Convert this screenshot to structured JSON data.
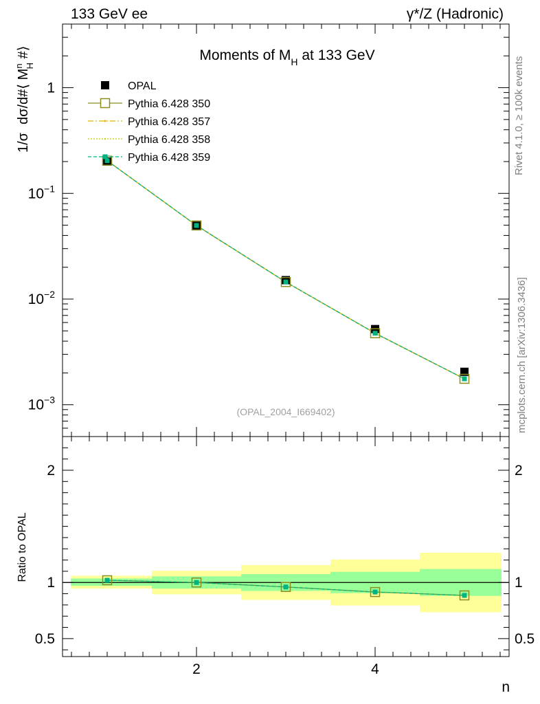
{
  "header": {
    "left": "133 GeV ee",
    "right": "γ*/Z (Hadronic)"
  },
  "side_text": {
    "top": "Rivet 4.1.0, ≥ 100k events",
    "bottom": "mcplots.cern.ch [arXiv:1306.3436]"
  },
  "colors": {
    "opal": "#000000",
    "p350": "#8c8c1e",
    "p357": "#e6b400",
    "p358": "#c8c800",
    "p359": "#00b482",
    "band_inner": "#99ff99",
    "band_outer": "#ffff99"
  },
  "chart_data": [
    {
      "type": "scatter",
      "title": "Moments of M",
      "title_sub": "H",
      "title_tail": " at 133 GeV",
      "reference": "(OPAL_2004_I669402)",
      "ylabel_prefix": "1/σ",
      "ylabel_main": "dσ/d#⟨ M",
      "ylabel_sup": "n",
      "ylabel_sub": "H",
      "ylabel_tail": " #⟩",
      "yscale": "log",
      "ylim": [
        0.0005,
        4
      ],
      "xlim": [
        0.5,
        5.5
      ],
      "x": [
        1,
        2,
        3,
        4,
        5
      ],
      "yticks": [
        {
          "value": 0.001,
          "base": "10",
          "exp": "−3"
        },
        {
          "value": 0.01,
          "base": "10",
          "exp": "−2"
        },
        {
          "value": 0.1,
          "base": "10",
          "exp": "−1"
        },
        {
          "value": 1,
          "label": "1"
        }
      ],
      "legend_position": "top-left",
      "series": [
        {
          "name": "OPAL",
          "values": [
            0.2,
            0.0495,
            0.0151,
            0.0052,
            0.00205
          ]
        },
        {
          "name": "Pythia 6.428 350",
          "values": [
            0.204,
            0.0497,
            0.0145,
            0.00475,
            0.00176
          ]
        },
        {
          "name": "Pythia 6.428 357",
          "values": [
            0.204,
            0.0497,
            0.0145,
            0.00475,
            0.00176
          ]
        },
        {
          "name": "Pythia 6.428 358",
          "values": [
            0.204,
            0.0497,
            0.0145,
            0.00475,
            0.00176
          ]
        },
        {
          "name": "Pythia 6.428 359",
          "values": [
            0.204,
            0.0497,
            0.0145,
            0.00475,
            0.00176
          ]
        }
      ]
    },
    {
      "type": "line",
      "ylabel": "Ratio to OPAL",
      "xlabel": "n",
      "ylim": [
        0.34,
        2.3
      ],
      "xlim": [
        0.5,
        5.5
      ],
      "x": [
        1,
        2,
        3,
        4,
        5
      ],
      "ratio": [
        1.02,
        1.0,
        0.96,
        0.915,
        0.885
      ],
      "band_inner": [
        [
          0.97,
          1.035
        ],
        [
          0.945,
          1.055
        ],
        [
          0.925,
          1.075
        ],
        [
          0.905,
          1.095
        ],
        [
          0.88,
          1.12
        ]
      ],
      "band_outer": [
        [
          0.945,
          1.06
        ],
        [
          0.895,
          1.105
        ],
        [
          0.845,
          1.155
        ],
        [
          0.795,
          1.205
        ],
        [
          0.735,
          1.265
        ]
      ],
      "yticks": [
        0.5,
        1,
        2
      ],
      "xticks": [
        2,
        4
      ]
    }
  ]
}
